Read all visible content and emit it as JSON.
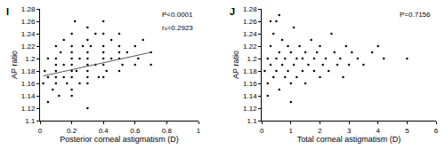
{
  "chart_data": [
    {
      "type": "scatter",
      "title": "I",
      "x_label": "Posterior corneal astigmatism (D)",
      "y_label": "AP ratio",
      "annotations": [
        "P<0.0001",
        "rₛ=0.2923"
      ],
      "xlim": [
        0,
        1
      ],
      "xticks": [
        0,
        0.2,
        0.4,
        0.6,
        0.8,
        1
      ],
      "ylim": [
        1.1,
        1.28
      ],
      "yticks": [
        1.1,
        1.12,
        1.14,
        1.16,
        1.18,
        1.2,
        1.22,
        1.24,
        1.26,
        1.28
      ],
      "grid": false,
      "series": [
        {
          "type": "scatter",
          "marker": "circle",
          "color": "#000000",
          "x": [
            0.02,
            0.03,
            0.05,
            0.05,
            0.08,
            0.1,
            0.1,
            0.1,
            0.1,
            0.1,
            0.1,
            0.12,
            0.13,
            0.15,
            0.15,
            0.15,
            0.17,
            0.2,
            0.2,
            0.2,
            0.2,
            0.2,
            0.2,
            0.2,
            0.2,
            0.2,
            0.22,
            0.23,
            0.25,
            0.25,
            0.27,
            0.3,
            0.3,
            0.3,
            0.3,
            0.3,
            0.3,
            0.3,
            0.3,
            0.32,
            0.35,
            0.35,
            0.37,
            0.4,
            0.4,
            0.4,
            0.4,
            0.4,
            0.4,
            0.4,
            0.42,
            0.45,
            0.45,
            0.5,
            0.5,
            0.5,
            0.5,
            0.5,
            0.52,
            0.55,
            0.6,
            0.6,
            0.62,
            0.65,
            0.7,
            0.7,
            0.05,
            0.3
          ],
          "values": [
            1.16,
            1.18,
            1.2,
            1.17,
            1.15,
            1.16,
            1.18,
            1.19,
            1.2,
            1.22,
            1.17,
            1.14,
            1.21,
            1.17,
            1.19,
            1.23,
            1.16,
            1.15,
            1.17,
            1.18,
            1.19,
            1.2,
            1.21,
            1.22,
            1.24,
            1.14,
            1.26,
            1.18,
            1.2,
            1.16,
            1.22,
            1.16,
            1.18,
            1.19,
            1.2,
            1.21,
            1.23,
            1.25,
            1.17,
            1.22,
            1.19,
            1.24,
            1.17,
            1.17,
            1.19,
            1.2,
            1.21,
            1.22,
            1.24,
            1.26,
            1.18,
            1.2,
            1.23,
            1.18,
            1.2,
            1.21,
            1.22,
            1.24,
            1.19,
            1.21,
            1.19,
            1.22,
            1.2,
            1.23,
            1.19,
            1.21,
            1.13,
            1.12
          ]
        },
        {
          "type": "line",
          "line_style": "solid",
          "color": "#555555",
          "x": [
            0.02,
            0.7
          ],
          "values": [
            1.172,
            1.21
          ]
        }
      ]
    },
    {
      "type": "scatter",
      "title": "J",
      "x_label": "Total corneal astigmatism (D)",
      "y_label": "AP ratio",
      "annotations": [
        "P=0.7156"
      ],
      "xlim": [
        0,
        6
      ],
      "xticks": [
        0,
        1,
        2,
        3,
        4,
        5,
        6
      ],
      "ylim": [
        1.1,
        1.28
      ],
      "yticks": [
        1.1,
        1.12,
        1.14,
        1.16,
        1.18,
        1.2,
        1.22,
        1.24,
        1.26,
        1.28
      ],
      "grid": false,
      "series": [
        {
          "type": "scatter",
          "marker": "circle",
          "color": "#000000",
          "x": [
            0.1,
            0.2,
            0.2,
            0.3,
            0.3,
            0.4,
            0.4,
            0.5,
            0.5,
            0.5,
            0.6,
            0.6,
            0.7,
            0.7,
            0.8,
            0.8,
            0.9,
            0.9,
            1,
            1,
            1.1,
            1.1,
            1.2,
            1.2,
            1.3,
            1.4,
            1.4,
            1.5,
            1.5,
            1.6,
            1.7,
            1.8,
            1.8,
            1.9,
            2,
            2,
            2.1,
            2.2,
            2.3,
            2.4,
            2.5,
            2.6,
            2.7,
            2.8,
            2.9,
            3,
            3.1,
            3.3,
            3.5,
            3.8,
            4,
            4.2,
            5,
            0.2,
            0.3,
            0.6,
            1
          ],
          "values": [
            1.18,
            1.2,
            1.16,
            1.22,
            1.19,
            1.17,
            1.24,
            1.2,
            1.18,
            1.26,
            1.15,
            1.21,
            1.19,
            1.23,
            1.17,
            1.2,
            1.22,
            1.18,
            1.16,
            1.21,
            1.19,
            1.25,
            1.2,
            1.17,
            1.22,
            1.18,
            1.2,
            1.21,
            1.16,
            1.19,
            1.23,
            1.18,
            1.2,
            1.21,
            1.17,
            1.22,
            1.19,
            1.2,
            1.18,
            1.24,
            1.21,
            1.19,
            1.2,
            1.17,
            1.22,
            1.19,
            1.21,
            1.2,
            1.19,
            1.21,
            1.22,
            1.2,
            1.2,
            1.14,
            1.26,
            1.27,
            1.13
          ]
        }
      ]
    }
  ]
}
